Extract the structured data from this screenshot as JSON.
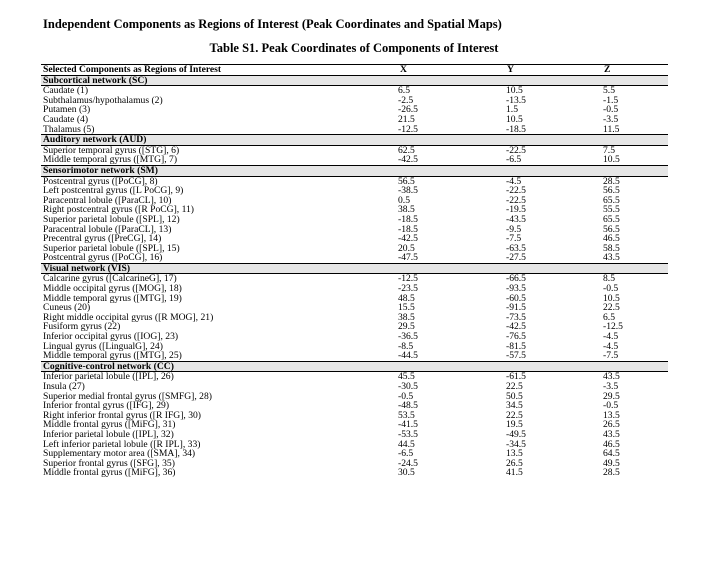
{
  "page_title": "Independent Components as Regions of Interest (Peak Coordinates and Spatial Maps)",
  "table_title": "Table S1. Peak Coordinates of Components of Interest",
  "headers": [
    "Selected Components as Regions of Interest",
    "X",
    "Y",
    "Z"
  ],
  "sections": [
    {
      "name": "Subcortical network (SC)",
      "rows": [
        [
          "Caudate (1)",
          "6.5",
          "10.5",
          "5.5"
        ],
        [
          "Subthalamus/hypothalamus (2)",
          "-2.5",
          "-13.5",
          "-1.5"
        ],
        [
          "Putamen (3)",
          "-26.5",
          "1.5",
          "-0.5"
        ],
        [
          "Caudate (4)",
          "21.5",
          "10.5",
          "-3.5"
        ],
        [
          "Thalamus (5)",
          "-12.5",
          "-18.5",
          "11.5"
        ]
      ]
    },
    {
      "name": "Auditory network (AUD)",
      "rows": [
        [
          "Superior temporal gyrus ([STG], 6)",
          "62.5",
          "-22.5",
          "7.5"
        ],
        [
          "Middle temporal gyrus ([MTG], 7)",
          "-42.5",
          "-6.5",
          "10.5"
        ]
      ]
    },
    {
      "name": "Sensorimotor network (SM)",
      "rows": [
        [
          "Postcentral gyrus ([PoCG], 8)",
          "56.5",
          "-4.5",
          "28.5"
        ],
        [
          "Left postcentral gyrus ([L PoCG], 9)",
          "-38.5",
          "-22.5",
          "56.5"
        ],
        [
          "Paracentral lobule ([ParaCL], 10)",
          "0.5",
          "-22.5",
          "65.5"
        ],
        [
          "Right postcentral gyrus ([R PoCG], 11)",
          "38.5",
          "-19.5",
          "55.5"
        ],
        [
          "Superior parietal lobule ([SPL], 12)",
          "-18.5",
          "-43.5",
          "65.5"
        ],
        [
          "Paracentral lobule ([ParaCL], 13)",
          "-18.5",
          "-9.5",
          "56.5"
        ],
        [
          "Precentral gyrus ([PreCG], 14)",
          "-42.5",
          "-7.5",
          "46.5"
        ],
        [
          "Superior parietal lobule ([SPL], 15)",
          "20.5",
          "-63.5",
          "58.5"
        ],
        [
          "Postcentral gyrus ([PoCG], 16)",
          "-47.5",
          "-27.5",
          "43.5"
        ]
      ]
    },
    {
      "name": "Visual network (VIS)",
      "rows": [
        [
          "Calcarine gyrus ([CalcarineG], 17)",
          "-12.5",
          "-66.5",
          "8.5"
        ],
        [
          "Middle occipital gyrus ([MOG], 18)",
          "-23.5",
          "-93.5",
          "-0.5"
        ],
        [
          "Middle temporal gyrus ([MTG], 19)",
          "48.5",
          "-60.5",
          "10.5"
        ],
        [
          "Cuneus (20)",
          "15.5",
          "-91.5",
          "22.5"
        ],
        [
          "Right middle occipital gyrus ([R MOG], 21)",
          "38.5",
          "-73.5",
          "6.5"
        ],
        [
          "Fusiform gyrus (22)",
          "29.5",
          "-42.5",
          "-12.5"
        ],
        [
          "Inferior occipital gyrus ([IOG], 23)",
          "-36.5",
          "-76.5",
          "-4.5"
        ],
        [
          "Lingual gyrus ([LingualG], 24)",
          "-8.5",
          "-81.5",
          "-4.5"
        ],
        [
          "Middle temporal gyrus ([MTG], 25)",
          "-44.5",
          "-57.5",
          "-7.5"
        ]
      ]
    },
    {
      "name": "Cognitive-control network (CC)",
      "rows": [
        [
          "Inferior parietal lobule ([IPL], 26)",
          "45.5",
          "-61.5",
          "43.5"
        ],
        [
          "Insula (27)",
          "-30.5",
          "22.5",
          "-3.5"
        ],
        [
          "Superior medial frontal gyrus ([SMFG], 28)",
          "-0.5",
          "50.5",
          "29.5"
        ],
        [
          "Inferior frontal gyrus ([IFG], 29)",
          "-48.5",
          "34.5",
          "-0.5"
        ],
        [
          "Right inferior frontal gyrus ([R IFG], 30)",
          "53.5",
          "22.5",
          "13.5"
        ],
        [
          "Middle frontal gyrus ([MiFG], 31)",
          "-41.5",
          "19.5",
          "26.5"
        ],
        [
          "Inferior parietal lobule ([IPL], 32)",
          "-53.5",
          "-49.5",
          "43.5"
        ],
        [
          "Left inferior parietal lobule ([R IPL], 33)",
          "44.5",
          "-34.5",
          "46.5"
        ],
        [
          "Supplementary motor area ([SMA], 34)",
          "-6.5",
          "13.5",
          "64.5"
        ],
        [
          "Superior frontal gyrus ([SFG], 35)",
          "-24.5",
          "26.5",
          "49.5"
        ],
        [
          "Middle frontal gyrus ([MiFG], 36)",
          "30.5",
          "41.5",
          "28.5"
        ]
      ]
    }
  ]
}
